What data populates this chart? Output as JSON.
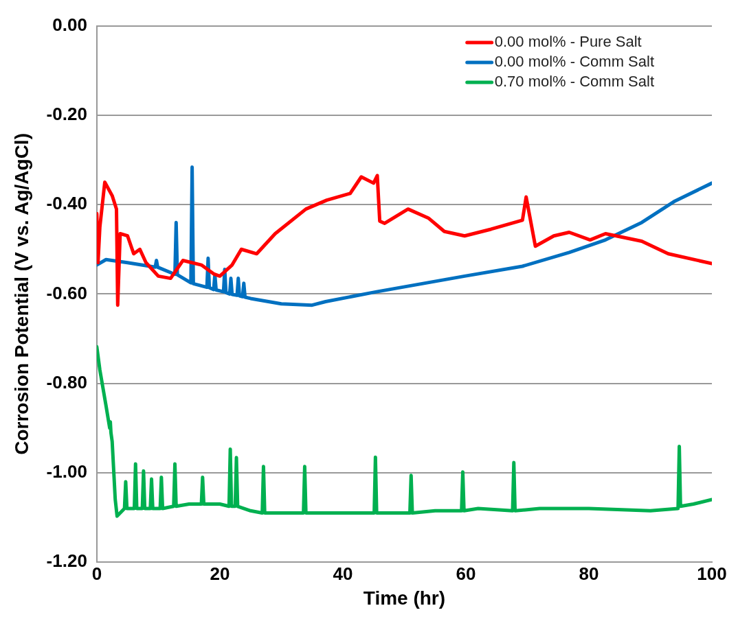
{
  "chart_data": {
    "type": "line",
    "xlabel": "Time (hr)",
    "ylabel": "Corrosion Potential (V vs. Ag/AgCl)",
    "xlim": [
      0,
      100
    ],
    "xticks": [
      0,
      20,
      40,
      60,
      80,
      100
    ],
    "ylim": [
      -1.2,
      0
    ],
    "yticks": [
      {
        "value": -1.2,
        "label": "-1.20"
      },
      {
        "value": -1.0,
        "label": "-1.00"
      },
      {
        "value": -0.8,
        "label": "-0.80"
      },
      {
        "value": -0.6,
        "label": "-0.60"
      },
      {
        "value": -0.4,
        "label": "-0.40"
      },
      {
        "value": -0.2,
        "label": "-0.20"
      },
      {
        "value": 0,
        "label": "0.00"
      }
    ],
    "grid": "y",
    "legend": "top right",
    "marker": "none",
    "line_style": "solid",
    "series": [
      {
        "name": "0.00 mol% - Pure Salt",
        "color": "#ff0000",
        "x": [
          0,
          0.2,
          0.5,
          1.3,
          2.5,
          3.2,
          3.4,
          3.8,
          5,
          6,
          7,
          8,
          10,
          12,
          14,
          17,
          19,
          20,
          22,
          23.5,
          26,
          29,
          34,
          37.4,
          41.2,
          43,
          45,
          45.6,
          46,
          46.8,
          50.6,
          53.9,
          56.5,
          59.8,
          64.1,
          69.2,
          69.8,
          71.3,
          74.3,
          76.8,
          80.2,
          82.7,
          88.6,
          92.9,
          100
        ],
        "values": [
          -0.42,
          -0.53,
          -0.45,
          -0.35,
          -0.38,
          -0.41,
          -0.625,
          -0.465,
          -0.47,
          -0.51,
          -0.5,
          -0.53,
          -0.56,
          -0.565,
          -0.525,
          -0.535,
          -0.555,
          -0.56,
          -0.535,
          -0.5,
          -0.51,
          -0.465,
          -0.41,
          -0.39,
          -0.375,
          -0.338,
          -0.352,
          -0.335,
          -0.437,
          -0.442,
          -0.41,
          -0.43,
          -0.46,
          -0.47,
          -0.455,
          -0.435,
          -0.383,
          -0.493,
          -0.47,
          -0.462,
          -0.479,
          -0.465,
          -0.482,
          -0.51,
          -0.532
        ]
      },
      {
        "name": "0.00 mol% - Comm Salt",
        "color": "#0070c0",
        "x": [
          0,
          1.5,
          5,
          9.5,
          9.7,
          9.9,
          12.7,
          12.9,
          13.1,
          15.3,
          15.5,
          15.7,
          17.9,
          18.1,
          18.3,
          19,
          19.2,
          19.4,
          20.6,
          20.8,
          21,
          21.6,
          21.8,
          22,
          22.8,
          23,
          23.2,
          23.7,
          23.9,
          24.1,
          25,
          30,
          35,
          37.2,
          45.5,
          59.8,
          69.2,
          76.8,
          82.7,
          88.6,
          94,
          100
        ],
        "values": [
          -0.535,
          -0.523,
          -0.53,
          -0.54,
          -0.525,
          -0.54,
          -0.556,
          -0.44,
          -0.557,
          -0.575,
          -0.316,
          -0.577,
          -0.585,
          -0.52,
          -0.586,
          -0.59,
          -0.557,
          -0.591,
          -0.595,
          -0.545,
          -0.597,
          -0.6,
          -0.565,
          -0.601,
          -0.603,
          -0.565,
          -0.604,
          -0.606,
          -0.576,
          -0.607,
          -0.61,
          -0.622,
          -0.625,
          -0.617,
          -0.595,
          -0.56,
          -0.538,
          -0.507,
          -0.479,
          -0.44,
          -0.392,
          -0.352
        ]
      },
      {
        "name": "0.70 mol% - Comm Salt",
        "color": "#00b050",
        "x": [
          0,
          0.5,
          1.5,
          2.1,
          2.2,
          2.3,
          2.5,
          3,
          3.3,
          4.5,
          4.7,
          4.9,
          6.1,
          6.3,
          6.5,
          7.4,
          7.6,
          7.8,
          8.7,
          8.9,
          9.1,
          10.3,
          10.5,
          10.7,
          12.5,
          12.7,
          12.9,
          15,
          17,
          17.2,
          17.4,
          20,
          21.5,
          21.7,
          21.9,
          22.5,
          22.7,
          22.9,
          25,
          26.9,
          27.1,
          27.3,
          30,
          33.6,
          33.8,
          34,
          40,
          45.1,
          45.3,
          45.5,
          50.9,
          51.1,
          51.3,
          55,
          59.3,
          59.5,
          59.7,
          62,
          67.6,
          67.8,
          68,
          72,
          80,
          90,
          94.5,
          94.7,
          94.9,
          97,
          100
        ],
        "values": [
          -0.718,
          -0.77,
          -0.85,
          -0.9,
          -0.886,
          -0.91,
          -0.93,
          -1.06,
          -1.097,
          -1.08,
          -1.02,
          -1.08,
          -1.08,
          -0.98,
          -1.08,
          -1.08,
          -0.996,
          -1.08,
          -1.08,
          -1.014,
          -1.08,
          -1.08,
          -1.01,
          -1.08,
          -1.075,
          -0.98,
          -1.075,
          -1.07,
          -1.07,
          -1.01,
          -1.07,
          -1.07,
          -1.075,
          -0.947,
          -1.075,
          -1.075,
          -0.966,
          -1.075,
          -1.085,
          -1.09,
          -0.986,
          -1.09,
          -1.09,
          -1.09,
          -0.986,
          -1.09,
          -1.09,
          -1.09,
          -0.965,
          -1.09,
          -1.09,
          -1.006,
          -1.09,
          -1.085,
          -1.085,
          -0.998,
          -1.085,
          -1.08,
          -1.085,
          -0.977,
          -1.085,
          -1.08,
          -1.08,
          -1.085,
          -1.08,
          -0.941,
          -1.075,
          -1.07,
          -1.06
        ]
      }
    ]
  }
}
